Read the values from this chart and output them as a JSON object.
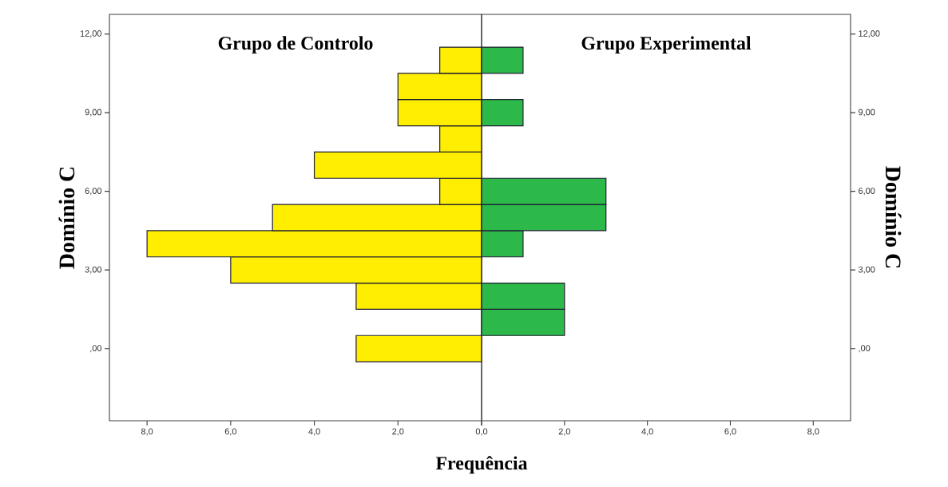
{
  "chart_data": [
    {
      "type": "histogram",
      "orientation": "horizontal",
      "title": "Grupo de Controlo",
      "xlabel": "Frequência",
      "ylabel": "Domínio C",
      "color": "#ffee00",
      "bins": [
        -0.5,
        0.5,
        1.5,
        2.5,
        3.5,
        4.5,
        5.5,
        6.5,
        7.5,
        8.5,
        9.5,
        10.5,
        11.5
      ],
      "values": [
        3,
        0,
        3,
        6,
        8,
        5,
        1,
        4,
        1,
        2,
        2,
        1
      ],
      "xlim": [
        8.9,
        0
      ],
      "ylim": [
        -2.75,
        12.75
      ],
      "xticks": [
        {
          "value": 8,
          "label": "8,0"
        },
        {
          "value": 6,
          "label": "6,0"
        },
        {
          "value": 4,
          "label": "4,0"
        },
        {
          "value": 2,
          "label": "2,0"
        },
        {
          "value": 0,
          "label": null
        }
      ],
      "yticks": [
        {
          "value": 0,
          "label": ",00"
        },
        {
          "value": 3,
          "label": "3,00"
        },
        {
          "value": 6,
          "label": "6,00"
        },
        {
          "value": 9,
          "label": "9,00"
        },
        {
          "value": 12,
          "label": "12,00"
        }
      ]
    },
    {
      "type": "histogram",
      "orientation": "horizontal",
      "title": "Grupo Experimental",
      "ylabel": "Domínio C",
      "color": "#2db84a",
      "bins": [
        -0.5,
        0.5,
        1.5,
        2.5,
        3.5,
        4.5,
        5.5,
        6.5,
        7.5,
        8.5,
        9.5,
        10.5,
        11.5
      ],
      "values": [
        0,
        2,
        2,
        0,
        1,
        3,
        3,
        0,
        0,
        1,
        0,
        1
      ],
      "xlim": [
        0,
        8.9
      ],
      "ylim": [
        -2.75,
        12.75
      ],
      "xticks": [
        {
          "value": 0,
          "label": "0,0"
        },
        {
          "value": 2,
          "label": "2,0"
        },
        {
          "value": 4,
          "label": "4,0"
        },
        {
          "value": 6,
          "label": "6,0"
        },
        {
          "value": 8,
          "label": "8,0"
        }
      ],
      "yticks": [
        {
          "value": 0,
          "label": ",00"
        },
        {
          "value": 3,
          "label": "3,00"
        },
        {
          "value": 6,
          "label": "6,00"
        },
        {
          "value": 9,
          "label": "9,00"
        },
        {
          "value": 12,
          "label": "12,00"
        }
      ]
    }
  ]
}
